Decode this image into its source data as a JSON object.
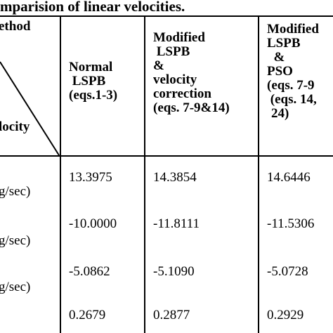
{
  "caption": "mparision of linear velocities.",
  "table": {
    "corner_top": "ethod",
    "corner_bottom": "locity",
    "columns": [
      {
        "lines": [
          "Normal",
          " LSPB",
          "(eqs.1-3)"
        ]
      },
      {
        "lines": [
          "Modified",
          " LSPB",
          "&",
          "velocity",
          "correction",
          "(eqs. 7-9&14)"
        ]
      },
      {
        "lines": [
          "Modified",
          "LSPB",
          "  &",
          "PSO",
          "(eqs. 7-9",
          " (eqs. 14,",
          "24)"
        ]
      }
    ],
    "rows": [
      {
        "label": "g/sec)",
        "values": [
          "13.3975",
          "14.3854",
          "14.6446"
        ]
      },
      {
        "label": "g/sec)",
        "values": [
          "-10.0000",
          "-11.8111",
          "-11.5306"
        ]
      },
      {
        "label": "g/sec)",
        "values": [
          "-5.0862",
          "-5.1090",
          "-5.0728"
        ]
      },
      {
        "label": "",
        "values": [
          "0.2679",
          "0.2877",
          "0.2929"
        ]
      }
    ]
  }
}
